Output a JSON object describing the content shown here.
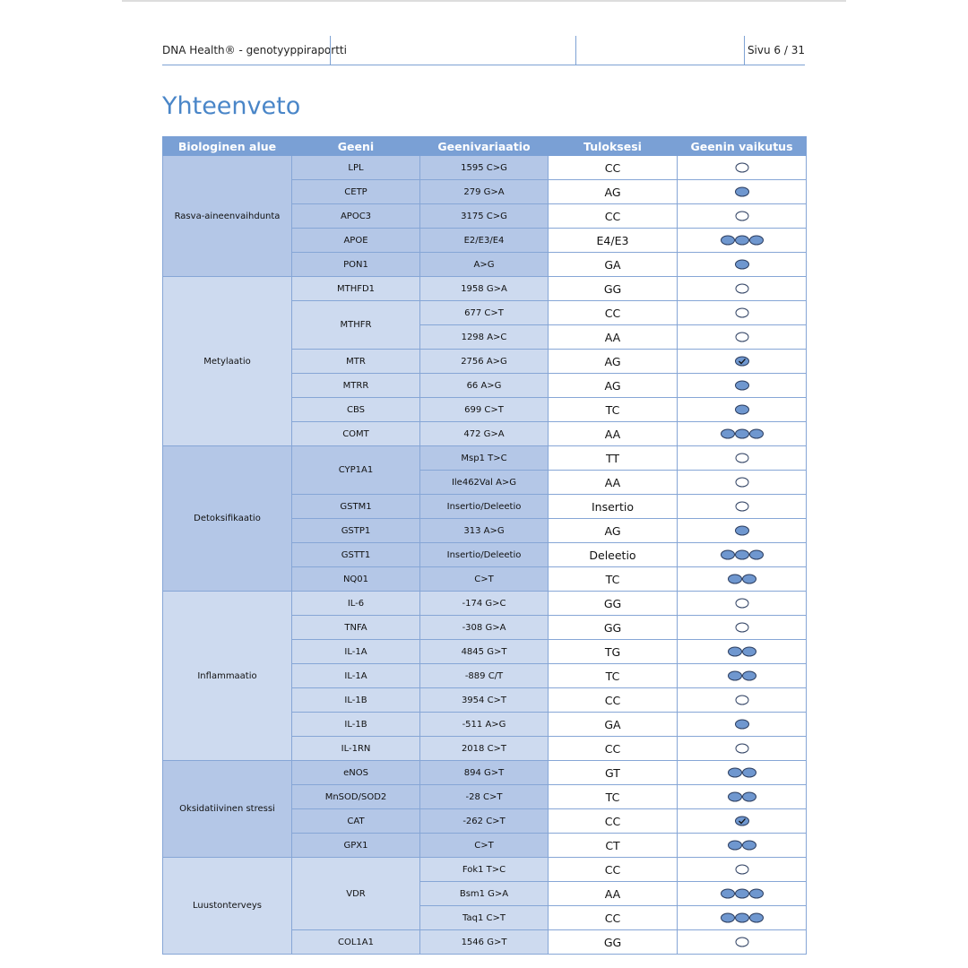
{
  "header": {
    "title": "DNA Health® - genotyyppiraportti",
    "page": "Sivu 6 / 31"
  },
  "title": "Yhteenveto",
  "table": {
    "columns": [
      "Biologinen alue",
      "Geeni",
      "Geenivariaatio",
      "Tuloksesi",
      "Geenin vaikutus"
    ],
    "groups": [
      {
        "area": "Rasva-aineenvaihdunta",
        "genes": [
          {
            "gene": "LPL",
            "variants": [
              {
                "variant": "1595 C>G",
                "result": "CC",
                "impact": 0
              }
            ]
          },
          {
            "gene": "CETP",
            "variants": [
              {
                "variant": "279 G>A",
                "result": "AG",
                "impact": 1
              }
            ]
          },
          {
            "gene": "APOC3",
            "variants": [
              {
                "variant": "3175 C>G",
                "result": "CC",
                "impact": 0
              }
            ]
          },
          {
            "gene": "APOE",
            "variants": [
              {
                "variant": "E2/E3/E4",
                "result": "E4/E3",
                "impact": 3
              }
            ]
          },
          {
            "gene": "PON1",
            "variants": [
              {
                "variant": "A>G",
                "result": "GA",
                "impact": 1
              }
            ]
          }
        ]
      },
      {
        "area": "Metylaatio",
        "genes": [
          {
            "gene": "MTHFD1",
            "variants": [
              {
                "variant": "1958 G>A",
                "result": "GG",
                "impact": 0
              }
            ]
          },
          {
            "gene": "MTHFR",
            "variants": [
              {
                "variant": "677 C>T",
                "result": "CC",
                "impact": 0
              },
              {
                "variant": "1298 A>C",
                "result": "AA",
                "impact": 0
              }
            ]
          },
          {
            "gene": "MTR",
            "variants": [
              {
                "variant": "2756 A>G",
                "result": "AG",
                "impact": "check"
              }
            ]
          },
          {
            "gene": "MTRR",
            "variants": [
              {
                "variant": "66 A>G",
                "result": "AG",
                "impact": 1
              }
            ]
          },
          {
            "gene": "CBS",
            "variants": [
              {
                "variant": "699 C>T",
                "result": "TC",
                "impact": 1
              }
            ]
          },
          {
            "gene": "COMT",
            "variants": [
              {
                "variant": "472 G>A",
                "result": "AA",
                "impact": 3
              }
            ]
          }
        ]
      },
      {
        "area": "Detoksifikaatio",
        "genes": [
          {
            "gene": "CYP1A1",
            "variants": [
              {
                "variant": "Msp1 T>C",
                "result": "TT",
                "impact": 0
              },
              {
                "variant": "Ile462Val A>G",
                "result": "AA",
                "impact": 0
              }
            ]
          },
          {
            "gene": "GSTM1",
            "variants": [
              {
                "variant": "Insertio/Deleetio",
                "result": "Insertio",
                "impact": 0
              }
            ]
          },
          {
            "gene": "GSTP1",
            "variants": [
              {
                "variant": "313 A>G",
                "result": "AG",
                "impact": 1
              }
            ]
          },
          {
            "gene": "GSTT1",
            "variants": [
              {
                "variant": "Insertio/Deleetio",
                "result": "Deleetio",
                "impact": 3
              }
            ]
          },
          {
            "gene": "NQ01",
            "variants": [
              {
                "variant": "C>T",
                "result": "TC",
                "impact": 2
              }
            ]
          }
        ]
      },
      {
        "area": "Inflammaatio",
        "genes": [
          {
            "gene": "IL-6",
            "variants": [
              {
                "variant": "-174 G>C",
                "result": "GG",
                "impact": 0
              }
            ]
          },
          {
            "gene": "TNFA",
            "variants": [
              {
                "variant": "-308 G>A",
                "result": "GG",
                "impact": 0
              }
            ]
          },
          {
            "gene": "IL-1A",
            "variants": [
              {
                "variant": "4845 G>T",
                "result": "TG",
                "impact": 2
              }
            ]
          },
          {
            "gene": "IL-1A",
            "variants": [
              {
                "variant": "-889 C/T",
                "result": "TC",
                "impact": 2
              }
            ]
          },
          {
            "gene": "IL-1B",
            "variants": [
              {
                "variant": "3954 C>T",
                "result": "CC",
                "impact": 0
              }
            ]
          },
          {
            "gene": "IL-1B",
            "variants": [
              {
                "variant": "-511 A>G",
                "result": "GA",
                "impact": 1
              }
            ]
          },
          {
            "gene": "IL-1RN",
            "variants": [
              {
                "variant": "2018 C>T",
                "result": "CC",
                "impact": 0
              }
            ]
          }
        ]
      },
      {
        "area": "Oksidatiivinen stressi",
        "genes": [
          {
            "gene": "eNOS",
            "variants": [
              {
                "variant": "894 G>T",
                "result": "GT",
                "impact": 2
              }
            ]
          },
          {
            "gene": "MnSOD/SOD2",
            "variants": [
              {
                "variant": "-28 C>T",
                "result": "TC",
                "impact": 2
              }
            ]
          },
          {
            "gene": "CAT",
            "variants": [
              {
                "variant": "-262 C>T",
                "result": "CC",
                "impact": "check"
              }
            ]
          },
          {
            "gene": "GPX1",
            "variants": [
              {
                "variant": "C>T",
                "result": "CT",
                "impact": 2
              }
            ]
          }
        ]
      },
      {
        "area": "Luustonterveys",
        "genes": [
          {
            "gene": "VDR",
            "variants": [
              {
                "variant": "Fok1 T>C",
                "result": "CC",
                "impact": 0
              },
              {
                "variant": "Bsm1 G>A",
                "result": "AA",
                "impact": 3
              },
              {
                "variant": "Taq1 C>T",
                "result": "CC",
                "impact": 3
              }
            ]
          },
          {
            "gene": "COL1A1",
            "variants": [
              {
                "variant": "1546 G>T",
                "result": "GG",
                "impact": 0
              }
            ]
          }
        ]
      }
    ]
  }
}
